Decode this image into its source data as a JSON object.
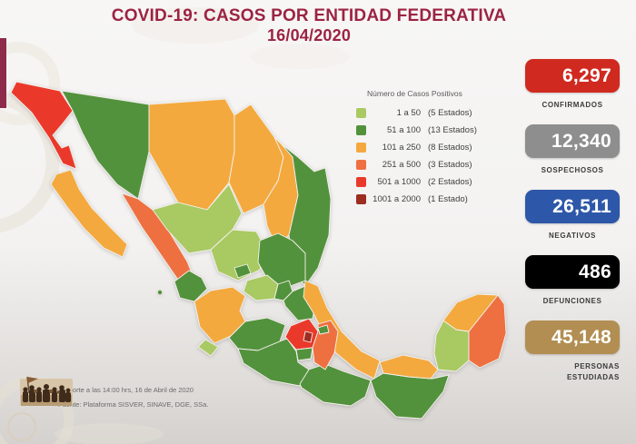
{
  "title": {
    "line1": "COVID-19: CASOS POR ENTIDAD FEDERATIVA",
    "line2": "16/04/2020"
  },
  "legend": {
    "title": "Número de Casos Positivos",
    "items": [
      {
        "range": "1 a 50",
        "count": "(5 Estados)",
        "color": "#a9c962"
      },
      {
        "range": "51 a 100",
        "count": "(13 Estados)",
        "color": "#53923c"
      },
      {
        "range": "101 a 250",
        "count": "(8 Estados)",
        "color": "#f4a93f"
      },
      {
        "range": "251 a 500",
        "count": "(3 Estados)",
        "color": "#ee7040"
      },
      {
        "range": "501 a 1000",
        "count": "(2 Estados)",
        "color": "#ea392a"
      },
      {
        "range": "1001 a 2000",
        "count": "(1 Estado)",
        "color": "#9c2d20"
      }
    ]
  },
  "stats": [
    {
      "value": "6,297",
      "label": "CONFIRMADOS",
      "color": "#d02a20",
      "align": "center"
    },
    {
      "value": "12,340",
      "label": "SOSPECHOSOS",
      "color": "#8e8e8e",
      "align": "center"
    },
    {
      "value": "26,511",
      "label": "NEGATIVOS",
      "color": "#2d57a8",
      "align": "center"
    },
    {
      "value": "486",
      "label": "DEFUNCIONES",
      "color": "#000000",
      "align": "center"
    },
    {
      "value": "45,148",
      "label": "PERSONAS ESTUDIADAS",
      "color": "#b28e52",
      "align": "right"
    }
  ],
  "footer": {
    "note": "con corte a las 14:00 hrs, 16 de Abril de 2020",
    "source": "Fuente: Plataforma SISVER, SINAVE, DGE, SSa."
  },
  "map": {
    "states": [
      {
        "id": "baja-california",
        "name": "Baja California",
        "range": "501 a 1000"
      },
      {
        "id": "baja-california-sur",
        "name": "Baja California Sur",
        "range": "101 a 250"
      },
      {
        "id": "sonora",
        "name": "Sonora",
        "range": "51 a 100"
      },
      {
        "id": "chihuahua",
        "name": "Chihuahua",
        "range": "101 a 250"
      },
      {
        "id": "coahuila",
        "name": "Coahuila",
        "range": "101 a 250"
      },
      {
        "id": "nuevo-leon",
        "name": "Nuevo León",
        "range": "101 a 250"
      },
      {
        "id": "tamaulipas",
        "name": "Tamaulipas",
        "range": "51 a 100"
      },
      {
        "id": "sinaloa",
        "name": "Sinaloa",
        "range": "251 a 500"
      },
      {
        "id": "durango",
        "name": "Durango",
        "range": "1 a 50"
      },
      {
        "id": "zacatecas",
        "name": "Zacatecas",
        "range": "1 a 50"
      },
      {
        "id": "aguascalientes",
        "name": "Aguascalientes",
        "range": "51 a 100"
      },
      {
        "id": "san-luis-potosi",
        "name": "San Luis Potosí",
        "range": "51 a 100"
      },
      {
        "id": "nayarit",
        "name": "Nayarit",
        "range": "51 a 100"
      },
      {
        "id": "jalisco",
        "name": "Jalisco",
        "range": "101 a 250"
      },
      {
        "id": "colima",
        "name": "Colima",
        "range": "1 a 50"
      },
      {
        "id": "guanajuato",
        "name": "Guanajuato",
        "range": "1 a 50"
      },
      {
        "id": "queretaro",
        "name": "Querétaro",
        "range": "51 a 100"
      },
      {
        "id": "hidalgo",
        "name": "Hidalgo",
        "range": "51 a 100"
      },
      {
        "id": "michoacan",
        "name": "Michoacán",
        "range": "51 a 100"
      },
      {
        "id": "estado-de-mexico",
        "name": "Estado de México",
        "range": "501 a 1000"
      },
      {
        "id": "cdmx",
        "name": "Ciudad de México",
        "range": "1001 a 2000"
      },
      {
        "id": "morelos",
        "name": "Morelos",
        "range": "51 a 100"
      },
      {
        "id": "tlaxcala",
        "name": "Tlaxcala",
        "range": "51 a 100"
      },
      {
        "id": "puebla",
        "name": "Puebla",
        "range": "251 a 500"
      },
      {
        "id": "veracruz",
        "name": "Veracruz",
        "range": "101 a 250"
      },
      {
        "id": "guerrero",
        "name": "Guerrero",
        "range": "51 a 100"
      },
      {
        "id": "oaxaca",
        "name": "Oaxaca",
        "range": "51 a 100"
      },
      {
        "id": "chiapas",
        "name": "Chiapas",
        "range": "51 a 100"
      },
      {
        "id": "tabasco",
        "name": "Tabasco",
        "range": "101 a 250"
      },
      {
        "id": "campeche",
        "name": "Campeche",
        "range": "1 a 50"
      },
      {
        "id": "yucatan",
        "name": "Yucatán",
        "range": "101 a 250"
      },
      {
        "id": "quintana-roo",
        "name": "Quintana Roo",
        "range": "251 a 500"
      }
    ]
  },
  "chart_data": {
    "type": "heatmap",
    "subtype": "choropleth-map-mexico",
    "title": "COVID-19: CASOS POR ENTIDAD FEDERATIVA",
    "date": "16/04/2020",
    "legend_title": "Número de Casos Positivos",
    "legend_position": "top-right",
    "bins": [
      {
        "range": "1 a 50",
        "states_count": 5,
        "color": "#a9c962"
      },
      {
        "range": "51 a 100",
        "states_count": 13,
        "color": "#53923c"
      },
      {
        "range": "101 a 250",
        "states_count": 8,
        "color": "#f4a93f"
      },
      {
        "range": "251 a 500",
        "states_count": 3,
        "color": "#ee7040"
      },
      {
        "range": "501 a 1000",
        "states_count": 2,
        "color": "#ea392a"
      },
      {
        "range": "1001 a 2000",
        "states_count": 1,
        "color": "#9c2d20"
      }
    ],
    "totals": {
      "confirmados": 6297,
      "sospechosos": 12340,
      "negativos": 26511,
      "defunciones": 486,
      "personas_estudiadas": 45148
    },
    "state_bins": {
      "1 a 50": [
        "Durango",
        "Zacatecas",
        "Guanajuato",
        "Colima",
        "Campeche"
      ],
      "51 a 100": [
        "Sonora",
        "Tamaulipas",
        "San Luis Potosí",
        "Aguascalientes",
        "Querétaro",
        "Hidalgo",
        "Nayarit",
        "Michoacán",
        "Morelos",
        "Guerrero",
        "Oaxaca",
        "Chiapas",
        "Tlaxcala"
      ],
      "101 a 250": [
        "Baja California Sur",
        "Chihuahua",
        "Coahuila",
        "Nuevo León",
        "Jalisco",
        "Veracruz",
        "Tabasco",
        "Yucatán"
      ],
      "251 a 500": [
        "Sinaloa",
        "Puebla",
        "Quintana Roo"
      ],
      "501 a 1000": [
        "Baja California",
        "Estado de México"
      ],
      "1001 a 2000": [
        "Ciudad de México"
      ]
    },
    "annotations": [
      "con corte a las 14:00 hrs, 16 de Abril de 2020",
      "Fuente: Plataforma SISVER, SINAVE, DGE, SSa."
    ]
  }
}
